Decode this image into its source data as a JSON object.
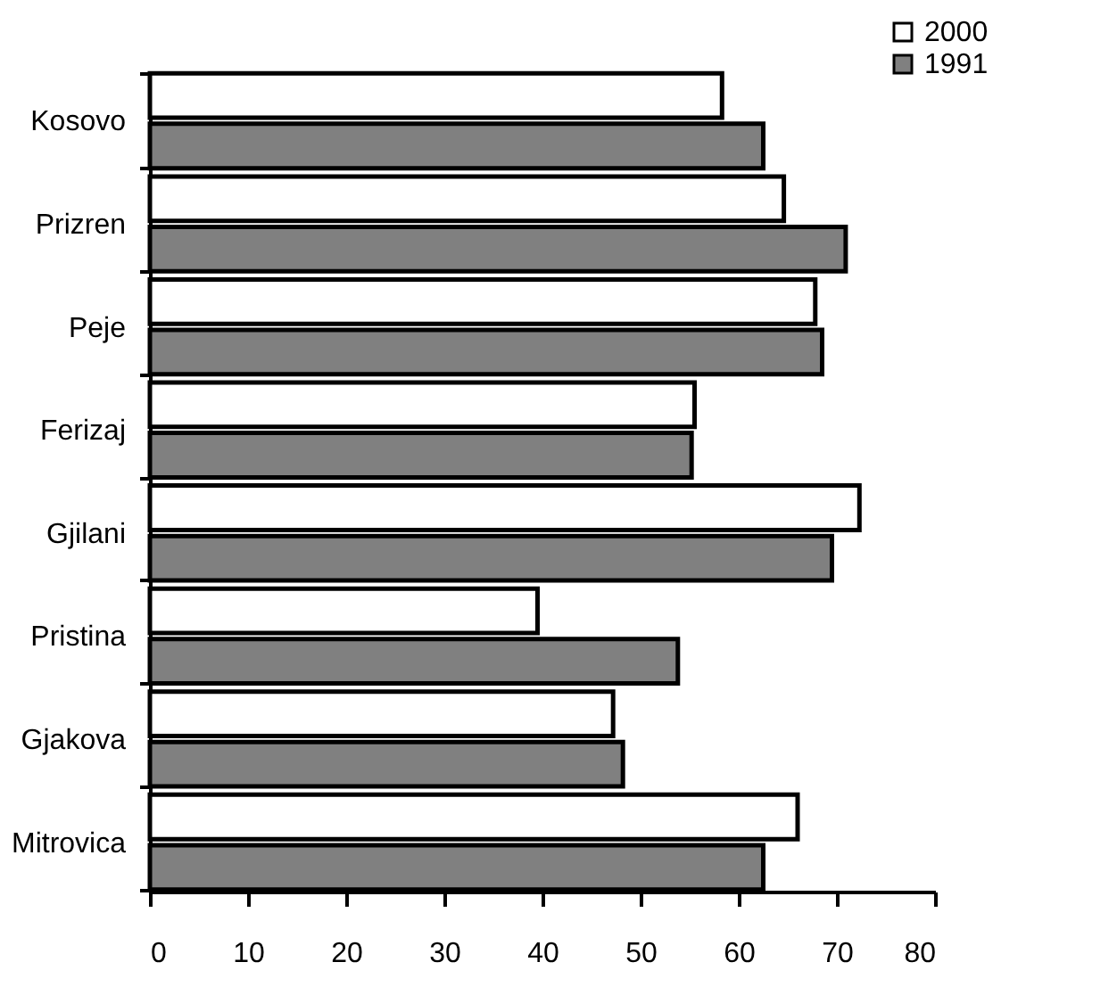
{
  "chart_data": {
    "type": "bar",
    "orientation": "horizontal",
    "categories": [
      "Kosovo",
      "Prizren",
      "Peje",
      "Ferizaj",
      "Gjilani",
      "Pristina",
      "Gjakova",
      "Mitrovica"
    ],
    "series": [
      {
        "name": "2000",
        "color": "#ffffff",
        "values": [
          58.3,
          64.6,
          67.8,
          55.5,
          72.3,
          39.5,
          47.2,
          66.0
        ]
      },
      {
        "name": "1991",
        "color": "#808080",
        "values": [
          62.5,
          70.9,
          68.5,
          55.2,
          69.5,
          53.8,
          48.2,
          62.5
        ]
      }
    ],
    "xlim": [
      0,
      80
    ],
    "xticks": [
      0,
      10,
      20,
      30,
      40,
      50,
      60,
      70,
      80
    ],
    "grid": false,
    "legend": "top right"
  }
}
